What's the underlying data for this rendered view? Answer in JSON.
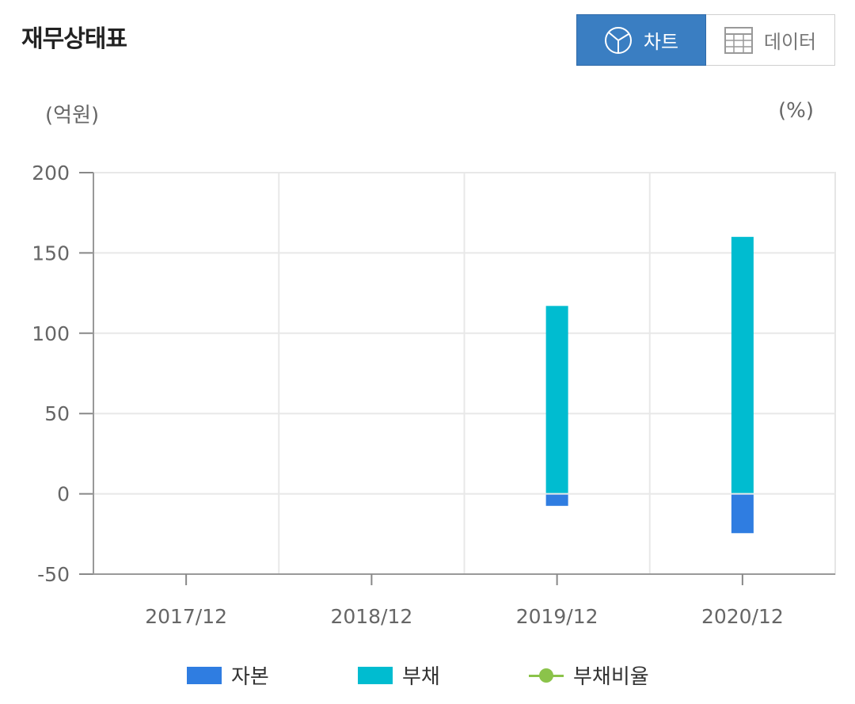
{
  "header": {
    "title": "재무상태표",
    "toggle": {
      "chart_label": "차트",
      "data_label": "데이터",
      "selected": "chart"
    }
  },
  "units": {
    "left": "(억원)",
    "right": "(%)"
  },
  "chart_data": {
    "type": "bar",
    "stacked": true,
    "categories": [
      "2017/12",
      "2018/12",
      "2019/12",
      "2020/12"
    ],
    "series": [
      {
        "name": "자본",
        "type": "bar",
        "color": "#2f7de1",
        "values": [
          null,
          null,
          -7,
          -24
        ]
      },
      {
        "name": "부채",
        "type": "bar",
        "color": "#00bcd0",
        "values": [
          null,
          null,
          117,
          160
        ]
      },
      {
        "name": "부채비율",
        "type": "line",
        "color": "#8bc34a",
        "values": [
          null,
          null,
          null,
          null
        ]
      }
    ],
    "y_ticks": [
      200,
      150,
      100,
      50,
      0,
      -50
    ],
    "ylim": [
      -50,
      200
    ],
    "grid": true,
    "legend_position": "bottom-center"
  }
}
